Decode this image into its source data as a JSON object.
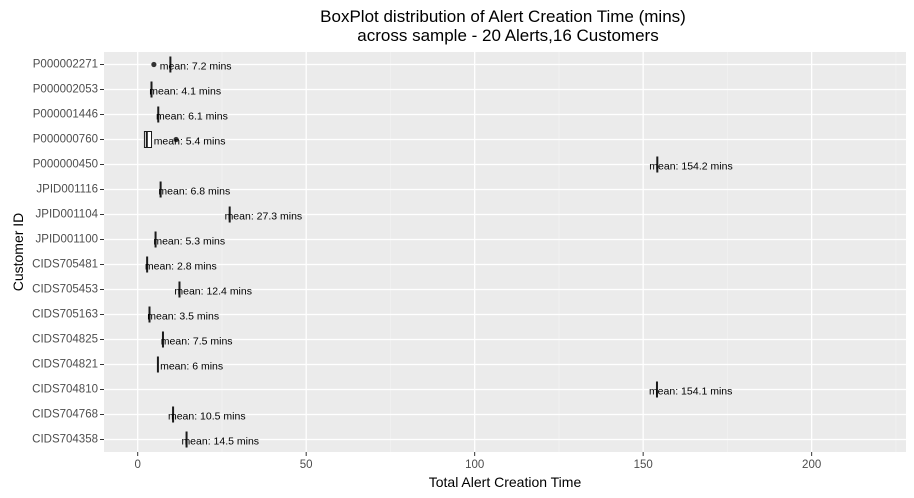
{
  "chart_data": {
    "type": "boxplot",
    "title": "BoxPlot distribution of Alert Creation Time (mins)",
    "subtitle": "across sample - 20 Alerts,16 Customers",
    "xlabel": "Total Alert Creation Time",
    "ylabel": "Customer ID",
    "xlim": [
      -10,
      228
    ],
    "x_ticks": [
      0,
      50,
      100,
      150,
      200
    ],
    "grid": true,
    "categories": [
      "P000002271",
      "P000002053",
      "P000001446",
      "P000000760",
      "P000000450",
      "JPID001116",
      "JPID001104",
      "JPID001100",
      "CIDS705481",
      "CIDS705453",
      "CIDS705163",
      "CIDS704825",
      "CIDS704821",
      "CIDS704810",
      "CIDS704768",
      "CIDS704358"
    ],
    "boxes": [
      {
        "category": "P000002271",
        "median": 9.7,
        "q1": 9.7,
        "q3": 9.7,
        "outliers": [
          4.8
        ]
      },
      {
        "category": "P000002053",
        "median": 4.1,
        "q1": 4.1,
        "q3": 4.1,
        "outliers": []
      },
      {
        "category": "P000001446",
        "median": 6.1,
        "q1": 6.1,
        "q3": 6.1,
        "outliers": []
      },
      {
        "category": "P000000760",
        "median": 2.7,
        "q1": 2.0,
        "q3": 4.1,
        "outliers": [
          11.4
        ]
      },
      {
        "category": "P000000450",
        "median": 154.2,
        "q1": 154.2,
        "q3": 154.2,
        "outliers": []
      },
      {
        "category": "JPID001116",
        "median": 6.8,
        "q1": 6.8,
        "q3": 6.8,
        "outliers": []
      },
      {
        "category": "JPID001104",
        "median": 27.3,
        "q1": 27.3,
        "q3": 27.3,
        "outliers": []
      },
      {
        "category": "JPID001100",
        "median": 5.3,
        "q1": 5.3,
        "q3": 5.3,
        "outliers": []
      },
      {
        "category": "CIDS705481",
        "median": 2.8,
        "q1": 2.8,
        "q3": 2.8,
        "outliers": []
      },
      {
        "category": "CIDS705453",
        "median": 12.4,
        "q1": 12.4,
        "q3": 12.4,
        "outliers": []
      },
      {
        "category": "CIDS705163",
        "median": 3.5,
        "q1": 3.5,
        "q3": 3.5,
        "outliers": []
      },
      {
        "category": "CIDS704825",
        "median": 7.5,
        "q1": 7.5,
        "q3": 7.5,
        "outliers": []
      },
      {
        "category": "CIDS704821",
        "median": 6,
        "q1": 6,
        "q3": 6,
        "outliers": []
      },
      {
        "category": "CIDS704810",
        "median": 154.1,
        "q1": 154.1,
        "q3": 154.1,
        "outliers": []
      },
      {
        "category": "CIDS704768",
        "median": 10.5,
        "q1": 10.5,
        "q3": 10.5,
        "outliers": []
      },
      {
        "category": "CIDS704358",
        "median": 14.5,
        "q1": 14.5,
        "q3": 14.5,
        "outliers": []
      }
    ],
    "annotations": [
      {
        "category": "P000002271",
        "text": "mean: 7.2 mins",
        "x": 17.2
      },
      {
        "category": "P000002053",
        "text": "mean: 4.1 mins",
        "x": 14.1
      },
      {
        "category": "P000001446",
        "text": "mean: 6.1 mins",
        "x": 16.1
      },
      {
        "category": "P000000760",
        "text": "mean: 5.4 mins",
        "x": 15.4
      },
      {
        "category": "P000000450",
        "text": "mean: 154.2 mins",
        "x": 164.2
      },
      {
        "category": "JPID001116",
        "text": "mean: 6.8 mins",
        "x": 16.8
      },
      {
        "category": "JPID001104",
        "text": "mean: 27.3 mins",
        "x": 37.3
      },
      {
        "category": "JPID001100",
        "text": "mean: 5.3 mins",
        "x": 15.3
      },
      {
        "category": "CIDS705481",
        "text": "mean: 2.8 mins",
        "x": 12.8
      },
      {
        "category": "CIDS705453",
        "text": "mean: 12.4 mins",
        "x": 22.4
      },
      {
        "category": "CIDS705163",
        "text": "mean: 3.5 mins",
        "x": 13.5
      },
      {
        "category": "CIDS704825",
        "text": "mean: 7.5 mins",
        "x": 17.5
      },
      {
        "category": "CIDS704821",
        "text": "mean: 6 mins",
        "x": 16
      },
      {
        "category": "CIDS704810",
        "text": "mean: 154.1 mins",
        "x": 164.1
      },
      {
        "category": "CIDS704768",
        "text": "mean: 10.5 mins",
        "x": 20.5
      },
      {
        "category": "CIDS704358",
        "text": "mean: 14.5 mins",
        "x": 24.5
      }
    ],
    "colors": {
      "panel_background": "#ebebeb",
      "grid_major": "#ffffff",
      "grid_minor": "#f2f2f2",
      "box_stroke": "#1a1a1a",
      "tick_text": "#4d4d4d"
    }
  }
}
